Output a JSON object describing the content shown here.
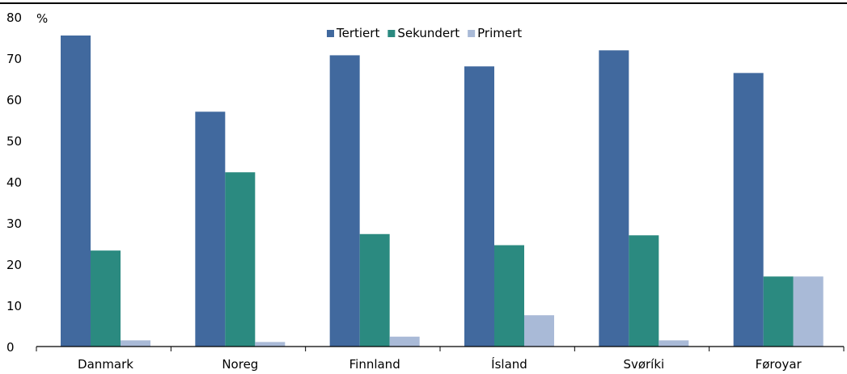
{
  "chart_data": {
    "type": "bar",
    "title": "",
    "xlabel": "",
    "ylabel": "%",
    "ylim": [
      0,
      80
    ],
    "yticks": [
      0,
      10,
      20,
      30,
      40,
      50,
      60,
      70,
      80
    ],
    "grid": false,
    "legend_position": "top-center",
    "categories": [
      "Danmark",
      "Noreg",
      "Finnland",
      "Ísland",
      "Svøríki",
      "Føroyar"
    ],
    "series": [
      {
        "name": "Tertiert",
        "color": "#41699e",
        "values": [
          75.5,
          57.0,
          70.7,
          68.0,
          71.9,
          66.4
        ]
      },
      {
        "name": "Sekundert",
        "color": "#2b8a80",
        "values": [
          23.3,
          42.3,
          27.3,
          24.6,
          27.0,
          17.0
        ]
      },
      {
        "name": "Primert",
        "color": "#a9bad7",
        "values": [
          1.5,
          1.1,
          2.4,
          7.6,
          1.5,
          17.0
        ]
      }
    ]
  }
}
